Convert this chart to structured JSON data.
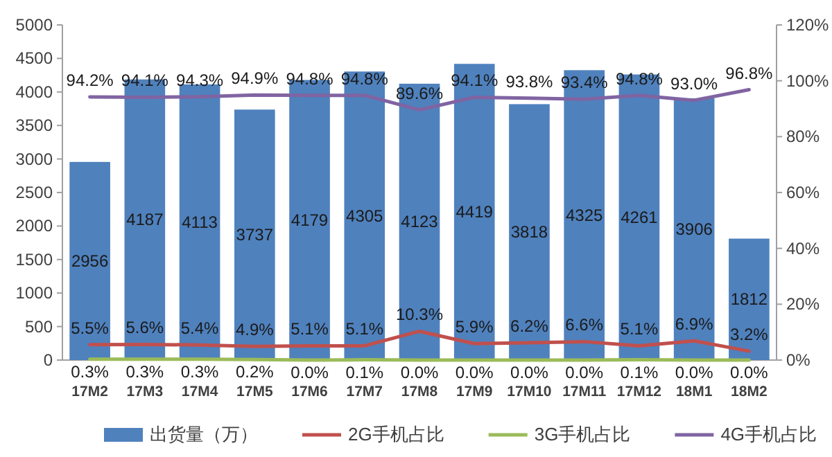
{
  "chart_data": {
    "type": "bar",
    "categories": [
      "17M2",
      "17M3",
      "17M4",
      "17M5",
      "17M6",
      "17M7",
      "17M8",
      "17M9",
      "17M10",
      "17M11",
      "17M12",
      "18M1",
      "18M2"
    ],
    "series": [
      {
        "name": "出货量（万）",
        "color": "#4f81bd",
        "values": [
          2956,
          4187,
          4113,
          3737,
          4179,
          4305,
          4123,
          4419,
          3818,
          4325,
          4261,
          3906,
          1812
        ]
      },
      {
        "name": "2G手机占比",
        "type": "line",
        "axis": "y2",
        "color": "#c0504d",
        "values": [
          5.5,
          5.6,
          5.4,
          4.9,
          5.1,
          5.1,
          10.3,
          5.9,
          6.2,
          6.6,
          5.1,
          6.9,
          3.2
        ],
        "value_labels": [
          "5.5%",
          "5.6%",
          "5.4%",
          "4.9%",
          "5.1%",
          "5.1%",
          "10.3%",
          "5.9%",
          "6.2%",
          "6.6%",
          "5.1%",
          "6.9%",
          "3.2%"
        ]
      },
      {
        "name": "3G手机占比",
        "type": "line",
        "axis": "y2",
        "color": "#9bbb59",
        "values": [
          0.3,
          0.3,
          0.3,
          0.2,
          0.0,
          0.1,
          0.0,
          0.0,
          0.0,
          0.0,
          0.1,
          0.0,
          0.0
        ],
        "value_labels": [
          "0.3%",
          "0.3%",
          "0.3%",
          "0.2%",
          "0.0%",
          "0.1%",
          "0.0%",
          "0.0%",
          "0.0%",
          "0.0%",
          "0.1%",
          "0.0%",
          "0.0%"
        ]
      },
      {
        "name": "4G手机占比",
        "type": "line",
        "axis": "y2",
        "color": "#8064a2",
        "values": [
          94.2,
          94.1,
          94.3,
          94.9,
          94.8,
          94.8,
          89.6,
          94.1,
          93.8,
          93.4,
          94.8,
          93.0,
          96.8
        ],
        "value_labels": [
          "94.2%",
          "94.1%",
          "94.3%",
          "94.9%",
          "94.8%",
          "94.8%",
          "89.6%",
          "94.1%",
          "93.8%",
          "93.4%",
          "94.8%",
          "93.0%",
          "96.8%"
        ]
      }
    ],
    "ylim": [
      0,
      5000
    ],
    "yticks": [
      0,
      500,
      1000,
      1500,
      2000,
      2500,
      3000,
      3500,
      4000,
      4500,
      5000
    ],
    "y2lim": [
      0,
      120
    ],
    "y2ticks": [
      {
        "value": 0,
        "label": "0%"
      },
      {
        "value": 20,
        "label": "20%"
      },
      {
        "value": 40,
        "label": "40%"
      },
      {
        "value": 60,
        "label": "60%"
      },
      {
        "value": 80,
        "label": "80%"
      },
      {
        "value": 100,
        "label": "100%"
      },
      {
        "value": 120,
        "label": "120%"
      }
    ],
    "data_labels": true,
    "legend": "bottom"
  }
}
